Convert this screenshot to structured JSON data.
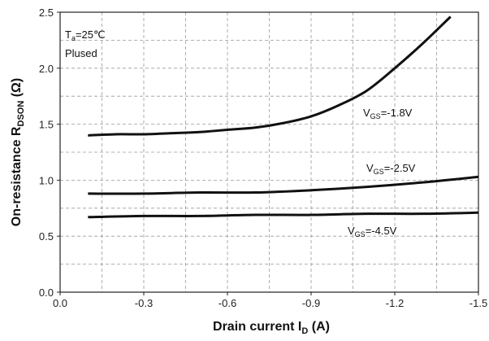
{
  "chart_data": {
    "type": "line",
    "xlabel": "Drain current I",
    "xlabel_sub": "D",
    "xlabel_unit": " (A)",
    "ylabel": "On-resistance R",
    "ylabel_sub": "DSON",
    "ylabel_unit": " (Ω)",
    "xlim": [
      0.0,
      -1.5
    ],
    "ylim": [
      0.0,
      2.5
    ],
    "x_ticks": [
      "0.0",
      "-0.3",
      "-0.6",
      "-0.9",
      "-1.2",
      "-1.5"
    ],
    "x_tick_values": [
      0.0,
      -0.3,
      -0.6,
      -0.9,
      -1.2,
      -1.5
    ],
    "y_ticks": [
      "0.0",
      "0.5",
      "1.0",
      "1.5",
      "2.0",
      "2.5"
    ],
    "y_tick_values": [
      0.0,
      0.5,
      1.0,
      1.5,
      2.0,
      2.5
    ],
    "grid": true,
    "conditions": {
      "temp_prefix": "T",
      "temp_sub": "a",
      "temp_value": "=25℃",
      "mode": "Plused"
    },
    "series": [
      {
        "name_prefix": "V",
        "name_sub": "GS",
        "name_value": "=-1.8V",
        "x": [
          -0.1,
          -0.2,
          -0.3,
          -0.4,
          -0.5,
          -0.6,
          -0.7,
          -0.8,
          -0.9,
          -1.0,
          -1.1,
          -1.2,
          -1.3,
          -1.4
        ],
        "y": [
          1.4,
          1.41,
          1.41,
          1.42,
          1.43,
          1.45,
          1.47,
          1.51,
          1.57,
          1.67,
          1.8,
          2.0,
          2.22,
          2.46
        ]
      },
      {
        "name_prefix": "V",
        "name_sub": "GS",
        "name_value": "=-2.5V",
        "x": [
          -0.1,
          -0.3,
          -0.5,
          -0.7,
          -0.9,
          -1.1,
          -1.3,
          -1.5
        ],
        "y": [
          0.88,
          0.88,
          0.89,
          0.89,
          0.91,
          0.94,
          0.98,
          1.03
        ]
      },
      {
        "name_prefix": "V",
        "name_sub": "GS",
        "name_value": "=-4.5V",
        "x": [
          -0.1,
          -0.3,
          -0.5,
          -0.7,
          -0.9,
          -1.1,
          -1.3,
          -1.5
        ],
        "y": [
          0.67,
          0.68,
          0.68,
          0.69,
          0.69,
          0.7,
          0.7,
          0.71
        ]
      }
    ]
  }
}
